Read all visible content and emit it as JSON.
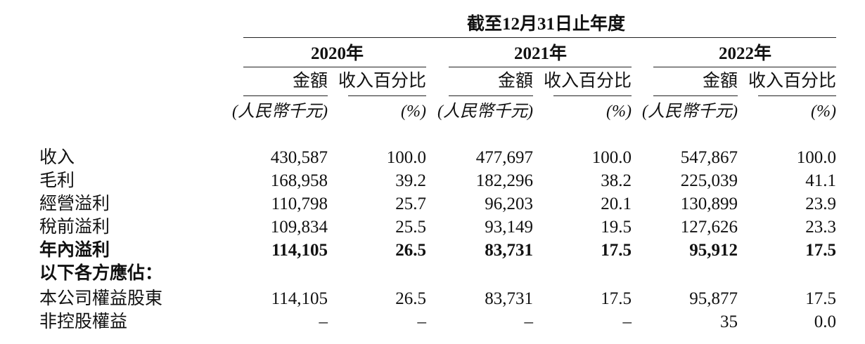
{
  "header": {
    "period": "截至12月31日止年度",
    "years": [
      "2020年",
      "2021年",
      "2022年"
    ],
    "amount_label": "金額",
    "percent_label": "收入百分比",
    "amount_unit": "(人民幣千元)",
    "percent_unit": "(%)"
  },
  "rows": [
    {
      "label": "收入",
      "bold": false,
      "values": [
        "430,587",
        "100.0",
        "477,697",
        "100.0",
        "547,867",
        "100.0"
      ]
    },
    {
      "label": "毛利",
      "bold": false,
      "values": [
        "168,958",
        "39.2",
        "182,296",
        "38.2",
        "225,039",
        "41.1"
      ]
    },
    {
      "label": "經營溢利",
      "bold": false,
      "values": [
        "110,798",
        "25.7",
        "96,203",
        "20.1",
        "130,899",
        "23.9"
      ]
    },
    {
      "label": "稅前溢利",
      "bold": false,
      "values": [
        "109,834",
        "25.5",
        "93,149",
        "19.5",
        "127,626",
        "23.3"
      ]
    },
    {
      "label": "年內溢利",
      "bold": true,
      "values": [
        "114,105",
        "26.5",
        "83,731",
        "17.5",
        "95,912",
        "17.5"
      ]
    },
    {
      "label": "以下各方應佔：",
      "bold": true,
      "values": []
    },
    {
      "label": "本公司權益股東",
      "bold": false,
      "values": [
        "114,105",
        "26.5",
        "83,731",
        "17.5",
        "95,877",
        "17.5"
      ]
    },
    {
      "label": "非控股權益",
      "bold": false,
      "values": [
        "–",
        "–",
        "–",
        "–",
        "35",
        "0.0"
      ]
    }
  ]
}
